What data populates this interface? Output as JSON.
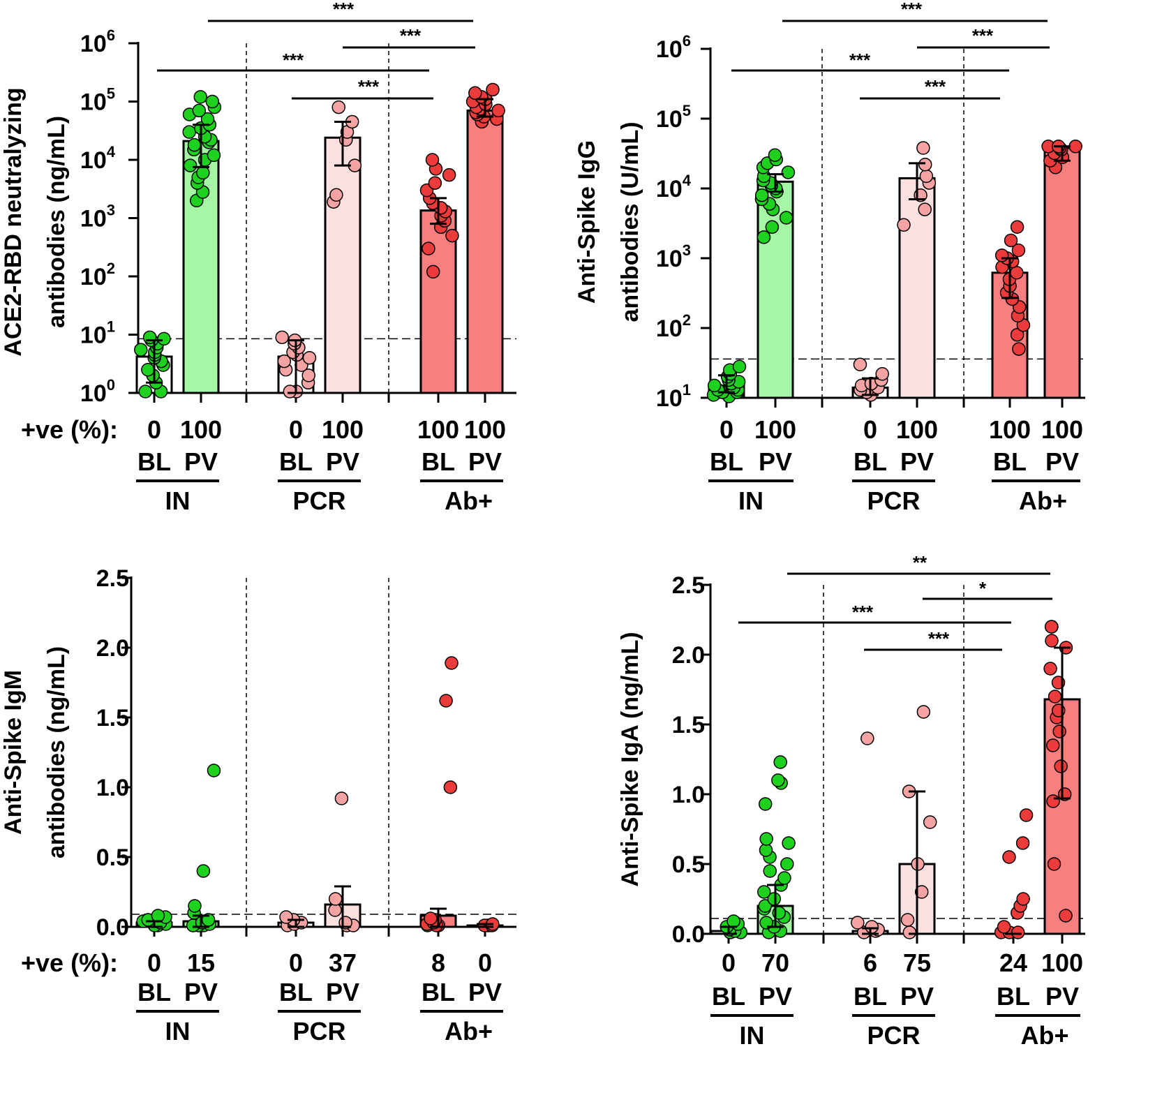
{
  "chart_data": [
    {
      "type": "bar",
      "panel": "top-left",
      "scale": "log",
      "ylabel": [
        "ACE2-RBD neutralyzing",
        "antibodies (ng/mL)"
      ],
      "ylim": [
        1,
        1000000
      ],
      "ytick_labels": [
        {
          "base": "10",
          "exp": "0"
        },
        {
          "base": "10",
          "exp": "1"
        },
        {
          "base": "10",
          "exp": "2"
        },
        {
          "base": "10",
          "exp": "3"
        },
        {
          "base": "10",
          "exp": "4"
        },
        {
          "base": "10",
          "exp": "5"
        },
        {
          "base": "10",
          "exp": "6"
        }
      ],
      "threshold": 8.5,
      "row_label": "+ve (%):",
      "groups": [
        {
          "name": "IN",
          "color_bl": "#1fd11f",
          "color_pv": "#1fd11f"
        },
        {
          "name": "PCR",
          "color_bl": "#f5a3a3",
          "color_pv": "#f5a3a3"
        },
        {
          "name": "Ab+",
          "color_bl": "#ec3b3b",
          "color_pv": "#ec3b3b"
        }
      ],
      "bars": [
        {
          "group": "IN",
          "timepoint": "BL",
          "value": 4.2,
          "err_low": 1.5,
          "err_high": 8,
          "fill": "#ffffff",
          "dot": "#1fd11f",
          "positive_pct": "0",
          "points": [
            1,
            1,
            1.5,
            2,
            2.5,
            3,
            3.5,
            4,
            4.5,
            5,
            5.5,
            6,
            7,
            8,
            8.5,
            9
          ]
        },
        {
          "group": "IN",
          "timepoint": "PV",
          "value": 21000,
          "err_low": 7500,
          "err_high": 40000,
          "fill": "#a5f7a5",
          "dot": "#1fd11f",
          "positive_pct": "100",
          "points": [
            2000,
            2800,
            4000,
            5000,
            6000,
            8000,
            10000,
            12000,
            15000,
            18000,
            20000,
            22000,
            25000,
            30000,
            35000,
            40000,
            50000,
            60000,
            70000,
            80000,
            100000,
            120000
          ]
        },
        {
          "group": "PCR",
          "timepoint": "BL",
          "value": 4.2,
          "err_low": 1,
          "err_high": 8,
          "fill": "#ffffff",
          "dot": "#f5a3a3",
          "positive_pct": "0",
          "points": [
            1,
            1,
            1.5,
            2,
            2.5,
            3,
            3.5,
            4,
            4.5,
            5,
            6,
            7,
            8,
            9
          ]
        },
        {
          "group": "PCR",
          "timepoint": "PV",
          "value": 24000,
          "err_low": 8000,
          "err_high": 45000,
          "fill": "#fde0e0",
          "dot": "#f5a3a3",
          "positive_pct": "100",
          "points": [
            1900,
            2500,
            8000,
            22000,
            30000,
            45000,
            80000
          ]
        },
        {
          "group": "Ab+",
          "timepoint": "BL",
          "value": 1350,
          "err_low": 800,
          "err_high": 2200,
          "fill": "#f77f7f",
          "dot": "#ec3b3b",
          "positive_pct": "100",
          "points": [
            120,
            300,
            500,
            700,
            900,
            1100,
            1300,
            1500,
            1800,
            2200,
            3000,
            4000,
            5500,
            7000,
            10000
          ]
        },
        {
          "group": "Ab+",
          "timepoint": "PV",
          "value": 70000,
          "err_low": 55000,
          "err_high": 110000,
          "fill": "#f77f7f",
          "dot": "#ec3b3b",
          "positive_pct": "100",
          "points": [
            45000,
            50000,
            55000,
            60000,
            65000,
            70000,
            75000,
            80000,
            90000,
            100000,
            110000,
            120000,
            140000,
            160000
          ]
        }
      ],
      "significance": [
        {
          "from": "IN PV",
          "to": "Ab+ PV",
          "label": "***"
        },
        {
          "from": "PCR PV",
          "to": "Ab+ PV",
          "label": "***"
        },
        {
          "from": "IN BL",
          "to": "Ab+ BL",
          "label": "***"
        },
        {
          "from": "PCR BL",
          "to": "Ab+ BL",
          "label": "***"
        }
      ]
    },
    {
      "type": "bar",
      "panel": "top-right",
      "scale": "log",
      "ylabel": [
        "Anti-Spike IgG",
        "antibodies (U/mL)"
      ],
      "ylim": [
        10,
        1000000
      ],
      "ytick_labels": [
        {
          "base": "10",
          "exp": "1"
        },
        {
          "base": "10",
          "exp": "2"
        },
        {
          "base": "10",
          "exp": "3"
        },
        {
          "base": "10",
          "exp": "4"
        },
        {
          "base": "10",
          "exp": "5"
        },
        {
          "base": "10",
          "exp": "6"
        }
      ],
      "threshold": 36,
      "row_label": "",
      "groups": [
        {
          "name": "IN"
        },
        {
          "name": "PCR"
        },
        {
          "name": "Ab+"
        }
      ],
      "bars": [
        {
          "group": "IN",
          "timepoint": "BL",
          "value": 15,
          "err_low": 12,
          "err_high": 21,
          "fill": "#ffffff",
          "dot": "#1fd11f",
          "positive_pct": "0",
          "points": [
            10,
            11,
            12,
            12,
            13,
            13,
            14,
            14,
            15,
            16,
            17,
            18,
            20,
            22,
            25,
            28
          ]
        },
        {
          "group": "IN",
          "timepoint": "PV",
          "value": 12500,
          "err_low": 9000,
          "err_high": 16000,
          "fill": "#a5f7a5",
          "dot": "#1fd11f",
          "positive_pct": "100",
          "points": [
            2000,
            2800,
            3800,
            5000,
            6000,
            7000,
            8000,
            9000,
            10000,
            11000,
            12000,
            13000,
            15000,
            17000,
            20000,
            23000,
            26000,
            30000
          ]
        },
        {
          "group": "PCR",
          "timepoint": "BL",
          "value": 14,
          "err_low": 11,
          "err_high": 19,
          "fill": "#ffffff",
          "dot": "#f5a3a3",
          "positive_pct": "0",
          "points": [
            11,
            12,
            13,
            14,
            15,
            16,
            18,
            22,
            30
          ]
        },
        {
          "group": "PCR",
          "timepoint": "PV",
          "value": 14000,
          "err_low": 7000,
          "err_high": 23000,
          "fill": "#fde0e0",
          "dot": "#f5a3a3",
          "positive_pct": "100",
          "points": [
            3000,
            5000,
            8000,
            12000,
            15000,
            22000,
            38000
          ]
        },
        {
          "group": "Ab+",
          "timepoint": "BL",
          "value": 620,
          "err_low": 270,
          "err_high": 1000,
          "fill": "#f77f7f",
          "dot": "#ec3b3b",
          "positive_pct": "100",
          "points": [
            50,
            80,
            110,
            150,
            200,
            260,
            320,
            400,
            500,
            620,
            750,
            900,
            1000,
            1100,
            1300,
            1800,
            2800
          ]
        },
        {
          "group": "Ab+",
          "timepoint": "PV",
          "value": 38000,
          "err_low": 25000,
          "err_high": 40000,
          "fill": "#f77f7f",
          "dot": "#ec3b3b",
          "positive_pct": "100",
          "points": [
            20000,
            25000,
            28000,
            32000,
            36000,
            38000,
            40000,
            40000,
            40000
          ]
        }
      ],
      "significance": [
        {
          "from": "IN PV",
          "to": "Ab+ PV",
          "label": "***"
        },
        {
          "from": "PCR PV",
          "to": "Ab+ PV",
          "label": "***"
        },
        {
          "from": "IN BL",
          "to": "Ab+ BL",
          "label": "***"
        },
        {
          "from": "PCR BL",
          "to": "Ab+ BL",
          "label": "***"
        }
      ]
    },
    {
      "type": "bar",
      "panel": "bottom-left",
      "scale": "linear",
      "ylabel": [
        "Anti-Spike IgM",
        "antibodies (ng/mL)"
      ],
      "ylim": [
        0,
        2.5
      ],
      "ytick_labels": [
        "0.0",
        "0.5",
        "1.0",
        "1.5",
        "2.0",
        "2.5"
      ],
      "threshold": 0.09,
      "row_label": "+ve (%):",
      "groups": [
        {
          "name": "IN"
        },
        {
          "name": "PCR"
        },
        {
          "name": "Ab+"
        }
      ],
      "bars": [
        {
          "group": "IN",
          "timepoint": "BL",
          "value": 0.03,
          "err_low": 0.0,
          "err_high": 0.04,
          "fill": "#ffffff",
          "dot": "#1fd11f",
          "positive_pct": "0",
          "points": [
            0.0,
            0.01,
            0.02,
            0.03,
            0.04,
            0.05,
            0.07,
            0.08
          ]
        },
        {
          "group": "IN",
          "timepoint": "PV",
          "value": 0.04,
          "err_low": 0.0,
          "err_high": 0.08,
          "fill": "#a5f7a5",
          "dot": "#1fd11f",
          "positive_pct": "15",
          "points": [
            0.0,
            0.0,
            0.0,
            0.01,
            0.02,
            0.03,
            0.05,
            0.1,
            0.15,
            0.4,
            1.12
          ]
        },
        {
          "group": "PCR",
          "timepoint": "BL",
          "value": 0.03,
          "err_low": 0.0,
          "err_high": 0.05,
          "fill": "#ffffff",
          "dot": "#f5a3a3",
          "positive_pct": "0",
          "points": [
            0.0,
            0.02,
            0.03,
            0.05,
            0.07
          ]
        },
        {
          "group": "PCR",
          "timepoint": "PV",
          "value": 0.16,
          "err_low": 0.0,
          "err_high": 0.29,
          "fill": "#fde0e0",
          "dot": "#f5a3a3",
          "positive_pct": "37",
          "points": [
            0.0,
            0.0,
            0.03,
            0.12,
            0.2,
            0.92
          ]
        },
        {
          "group": "Ab+",
          "timepoint": "BL",
          "value": 0.08,
          "err_low": 0.0,
          "err_high": 0.13,
          "fill": "#f77f7f",
          "dot": "#ec3b3b",
          "positive_pct": "8",
          "points": [
            0.0,
            0.0,
            0.01,
            0.02,
            0.03,
            0.05,
            0.06,
            1.0,
            1.62,
            1.89
          ]
        },
        {
          "group": "Ab+",
          "timepoint": "PV",
          "value": 0.01,
          "err_low": 0.0,
          "err_high": 0.02,
          "fill": "#f77f7f",
          "dot": "#ec3b3b",
          "positive_pct": "0",
          "points": [
            0.0,
            0.0,
            0.01,
            0.01,
            0.02
          ]
        }
      ],
      "significance": []
    },
    {
      "type": "bar",
      "panel": "bottom-right",
      "scale": "linear",
      "ylabel": [
        "Anti-Spike IgA  (ng/mL)"
      ],
      "ylim": [
        0,
        2.5
      ],
      "ytick_labels": [
        "0.0",
        "0.5",
        "1.0",
        "1.5",
        "2.0",
        "2.5"
      ],
      "threshold": 0.11,
      "row_label": "",
      "groups": [
        {
          "name": "IN"
        },
        {
          "name": "PCR"
        },
        {
          "name": "Ab+"
        }
      ],
      "bars": [
        {
          "group": "IN",
          "timepoint": "BL",
          "value": 0.02,
          "err_low": 0.0,
          "err_high": 0.05,
          "fill": "#ffffff",
          "dot": "#1fd11f",
          "positive_pct": "0",
          "points": [
            0.0,
            0.01,
            0.02,
            0.03,
            0.05,
            0.07,
            0.09
          ]
        },
        {
          "group": "IN",
          "timepoint": "PV",
          "value": 0.2,
          "err_low": 0.05,
          "err_high": 0.35,
          "fill": "#a5f7a5",
          "dot": "#1fd11f",
          "positive_pct": "70",
          "points": [
            0.0,
            0.02,
            0.05,
            0.08,
            0.12,
            0.15,
            0.18,
            0.2,
            0.25,
            0.3,
            0.35,
            0.4,
            0.45,
            0.5,
            0.55,
            0.6,
            0.65,
            0.68,
            0.93,
            1.08,
            1.1,
            1.23
          ]
        },
        {
          "group": "PCR",
          "timepoint": "BL",
          "value": 0.02,
          "err_low": 0.0,
          "err_high": 0.04,
          "fill": "#ffffff",
          "dot": "#f5a3a3",
          "positive_pct": "6",
          "points": [
            0.0,
            0.02,
            0.03,
            0.05,
            0.08,
            1.4
          ]
        },
        {
          "group": "PCR",
          "timepoint": "PV",
          "value": 0.5,
          "err_low": 0.0,
          "err_high": 1.02,
          "fill": "#fde0e0",
          "dot": "#f5a3a3",
          "positive_pct": "75",
          "points": [
            0.0,
            0.1,
            0.3,
            0.5,
            0.8,
            1.02,
            1.59
          ]
        },
        {
          "group": "Ab+",
          "timepoint": "BL",
          "value": 0.0,
          "err_low": 0.0,
          "err_high": 0.0,
          "fill": "#f77f7f",
          "dot": "#ec3b3b",
          "positive_pct": "24",
          "points": [
            0.0,
            0.0,
            0.0,
            0.05,
            0.15,
            0.2,
            0.25,
            0.55,
            0.65,
            0.85
          ]
        },
        {
          "group": "Ab+",
          "timepoint": "PV",
          "value": 1.68,
          "err_low": 0.97,
          "err_high": 2.05,
          "fill": "#f77f7f",
          "dot": "#ec3b3b",
          "positive_pct": "100",
          "points": [
            0.13,
            0.5,
            0.95,
            1.0,
            1.2,
            1.35,
            1.45,
            1.55,
            1.6,
            1.7,
            1.8,
            1.9,
            2.05,
            2.1,
            2.2,
            2.2
          ]
        }
      ],
      "significance": [
        {
          "from": "IN PV",
          "to": "Ab+ PV",
          "label": "**"
        },
        {
          "from": "PCR PV",
          "to": "Ab+ PV",
          "label": "*"
        },
        {
          "from": "IN BL",
          "to": "Ab+ BL",
          "label": "***"
        },
        {
          "from": "PCR BL",
          "to": "Ab+ BL",
          "label": "***"
        }
      ]
    }
  ]
}
